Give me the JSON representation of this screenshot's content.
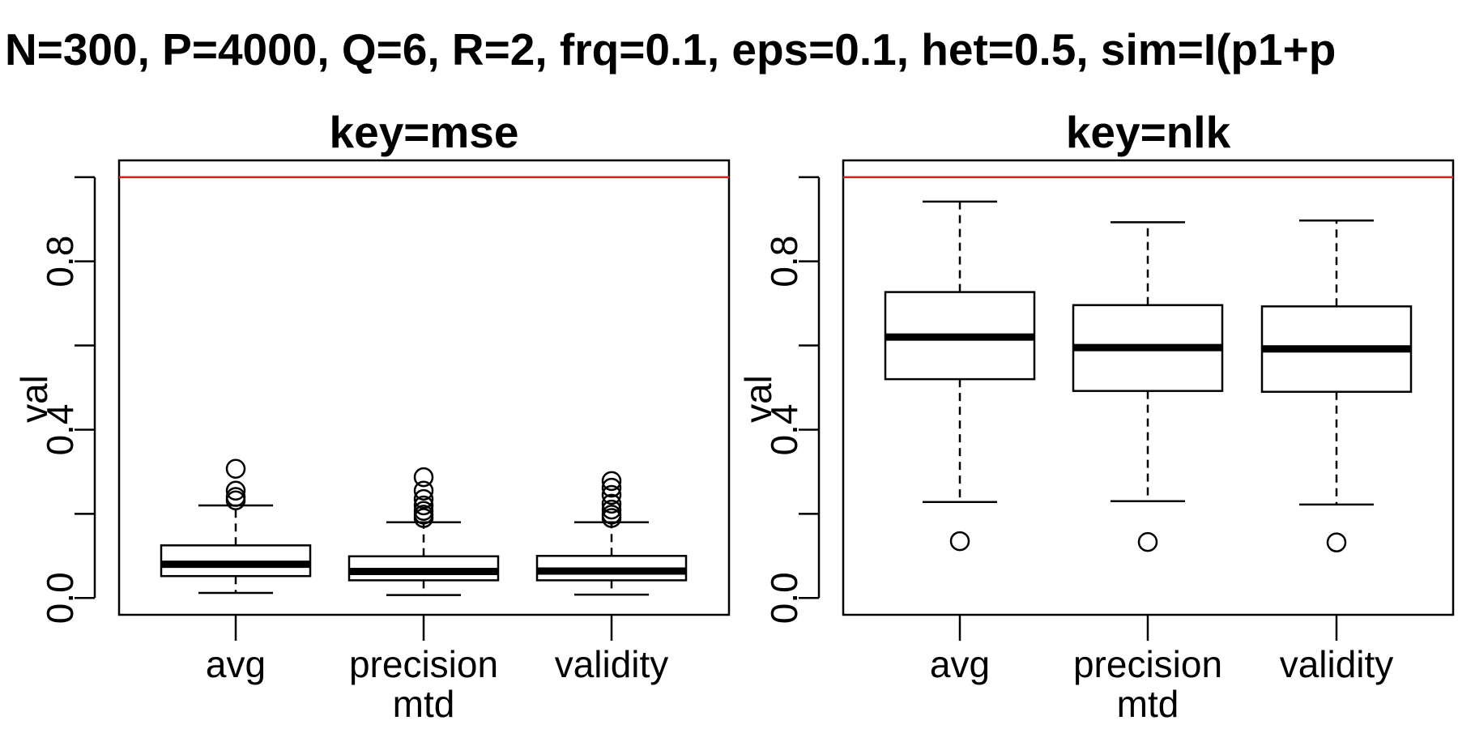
{
  "title": "N=300, P=4000, Q=6, R=2, frq=0.1, eps=0.1, het=0.5, sim=I(p1+p",
  "colors": {
    "reference_line": "#e41a1c",
    "ink": "#000000",
    "box_fill": "#ffffff"
  },
  "chart_data": [
    {
      "type": "box",
      "title": "key=mse",
      "xlabel": "mtd",
      "ylabel": "val",
      "ylim": [
        -0.04,
        1.04
      ],
      "yticks": [
        0.0,
        0.2,
        0.4,
        0.6,
        0.8,
        1.0
      ],
      "ytick_labels": [
        "0.0",
        "",
        "0.4",
        "",
        "0.8",
        ""
      ],
      "reference_line": 1.0,
      "categories": [
        "avg",
        "precision",
        "validity"
      ],
      "boxes": [
        {
          "name": "avg",
          "whisker_low": 0.012,
          "q1": 0.052,
          "median": 0.08,
          "q3": 0.125,
          "whisker_high": 0.22,
          "outliers": [
            0.232,
            0.24,
            0.255,
            0.307
          ]
        },
        {
          "name": "precision",
          "whisker_low": 0.007,
          "q1": 0.042,
          "median": 0.063,
          "q3": 0.099,
          "whisker_high": 0.18,
          "outliers": [
            0.19,
            0.198,
            0.207,
            0.22,
            0.235,
            0.255,
            0.287
          ]
        },
        {
          "name": "validity",
          "whisker_low": 0.008,
          "q1": 0.042,
          "median": 0.064,
          "q3": 0.1,
          "whisker_high": 0.18,
          "outliers": [
            0.19,
            0.198,
            0.21,
            0.224,
            0.245,
            0.262,
            0.278
          ]
        }
      ]
    },
    {
      "type": "box",
      "title": "key=nlk",
      "xlabel": "mtd",
      "ylabel": "val",
      "ylim": [
        -0.04,
        1.04
      ],
      "yticks": [
        0.0,
        0.2,
        0.4,
        0.6,
        0.8,
        1.0
      ],
      "ytick_labels": [
        "0.0",
        "",
        "0.4",
        "",
        "0.8",
        ""
      ],
      "reference_line": 1.0,
      "categories": [
        "avg",
        "precision",
        "validity"
      ],
      "boxes": [
        {
          "name": "avg",
          "whisker_low": 0.228,
          "q1": 0.52,
          "median": 0.62,
          "q3": 0.727,
          "whisker_high": 0.942,
          "outliers": [
            0.135
          ]
        },
        {
          "name": "precision",
          "whisker_low": 0.23,
          "q1": 0.492,
          "median": 0.595,
          "q3": 0.696,
          "whisker_high": 0.893,
          "outliers": [
            0.133
          ]
        },
        {
          "name": "validity",
          "whisker_low": 0.222,
          "q1": 0.49,
          "median": 0.592,
          "q3": 0.693,
          "whisker_high": 0.897,
          "outliers": [
            0.132
          ]
        }
      ]
    }
  ]
}
